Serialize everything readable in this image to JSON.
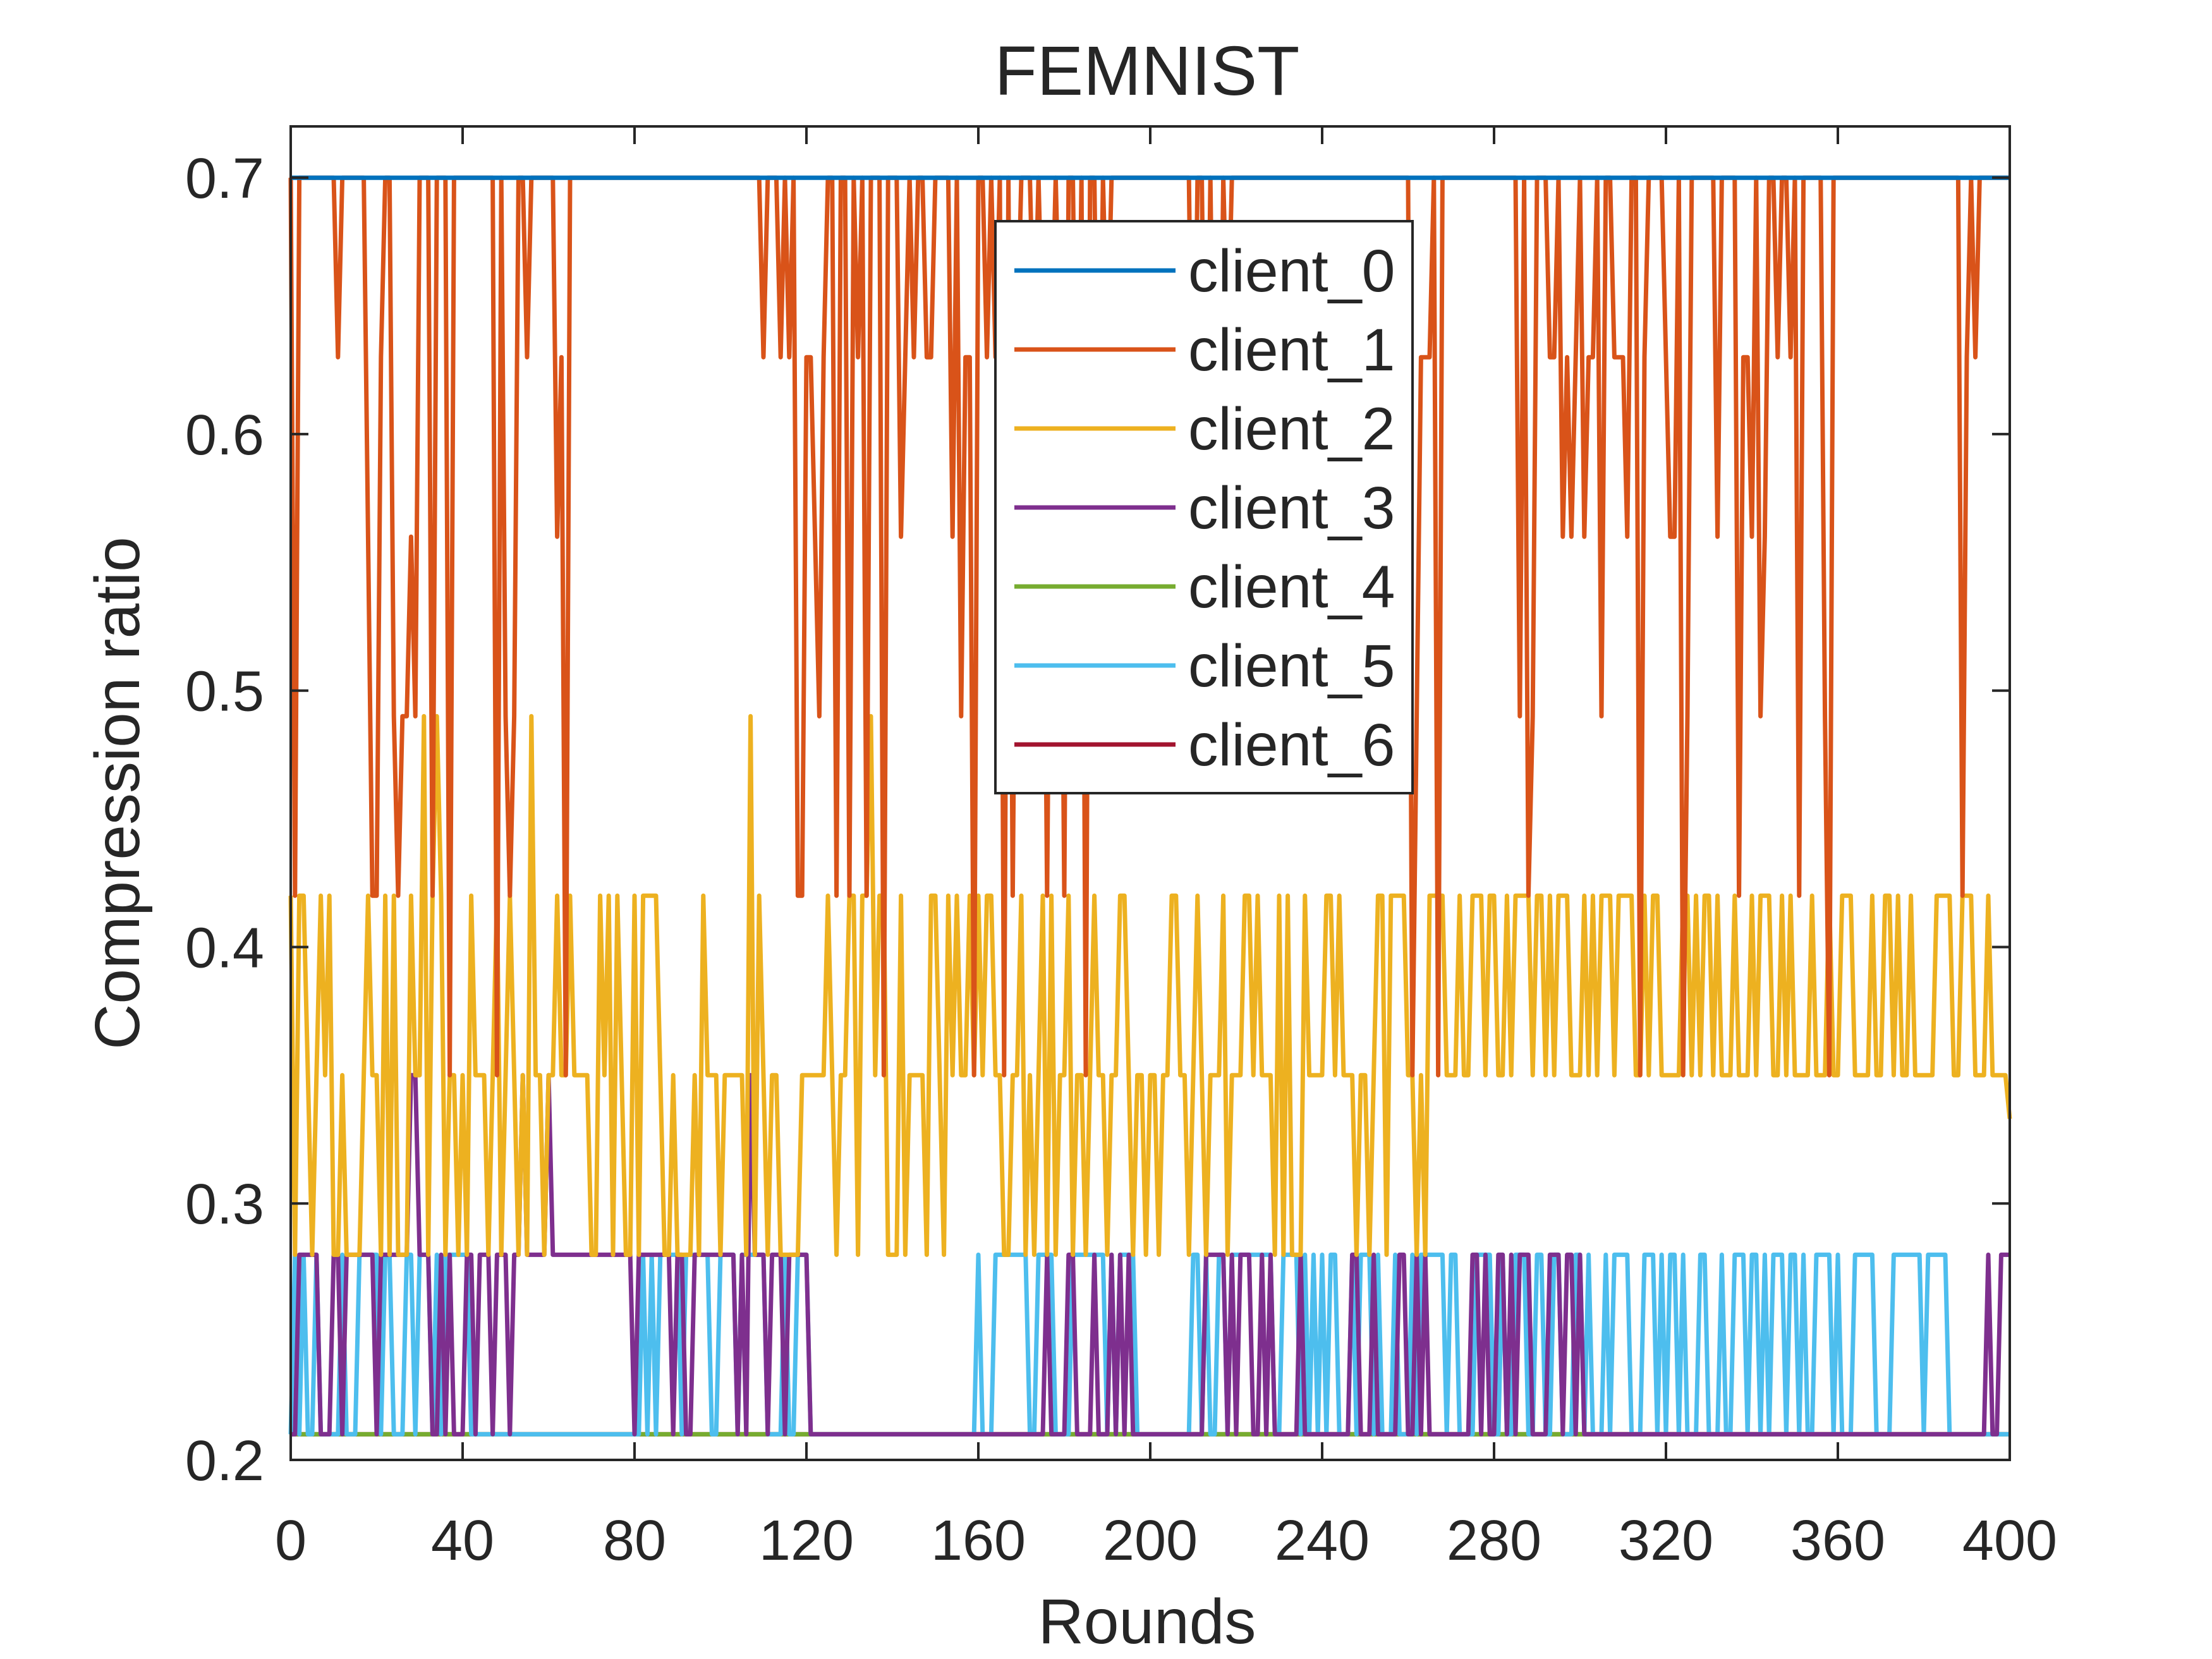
{
  "chart_data": {
    "type": "line",
    "title": "FEMNIST",
    "xlabel": "Rounds",
    "ylabel": "Compression ratio",
    "xlim": [
      0,
      400
    ],
    "ylim": [
      0.2,
      0.72
    ],
    "xticks": [
      0,
      40,
      80,
      120,
      160,
      200,
      240,
      280,
      320,
      360,
      400
    ],
    "yticks": [
      0.2,
      0.3,
      0.4,
      0.5,
      0.6,
      0.7
    ],
    "xtick_labels": [
      "0",
      "40",
      "80",
      "120",
      "160",
      "200",
      "240",
      "280",
      "320",
      "360",
      "400"
    ],
    "ytick_labels": [
      "0.2",
      "0.3",
      "0.4",
      "0.5",
      "0.6",
      "0.7"
    ],
    "legend_position": "top-center",
    "series": [
      {
        "name": "client_0",
        "color": "#0072BD",
        "constant": 0.7,
        "x": [
          0,
          400
        ]
      },
      {
        "name": "client_1",
        "color": "#D95319",
        "base": 0.7,
        "values_pool": [
          0.7,
          0.63,
          0.56,
          0.49,
          0.42,
          0.35
        ],
        "drop_windows": [
          [
            0,
            65
          ],
          [
            110,
            190
          ],
          [
            210,
            220
          ],
          [
            258,
            268
          ],
          [
            285,
            332
          ],
          [
            335,
            358
          ],
          [
            385,
            392
          ]
        ]
      },
      {
        "name": "client_2",
        "color": "#EDB120",
        "base": 0.35,
        "values_pool": [
          0.35,
          0.42,
          0.28,
          0.49
        ],
        "end_value": 0.333
      },
      {
        "name": "client_3",
        "color": "#7E2F8E",
        "base": 0.21,
        "values_pool": [
          0.21,
          0.28,
          0.35
        ],
        "active_windows": [
          [
            0,
            120
          ],
          [
            175,
            195
          ],
          [
            210,
            235
          ],
          [
            245,
            300
          ],
          [
            395,
            400
          ]
        ]
      },
      {
        "name": "client_4",
        "color": "#77AC30",
        "constant": 0.21,
        "x": [
          0,
          400
        ]
      },
      {
        "name": "client_5",
        "color": "#4DBEEE",
        "base": 0.21,
        "values_pool": [
          0.21,
          0.28
        ],
        "active_windows": [
          [
            0,
            45
          ],
          [
            80,
            122
          ],
          [
            160,
            200
          ],
          [
            210,
            385
          ]
        ]
      },
      {
        "name": "client_6",
        "color": "#A2142F",
        "constant": 0.21,
        "x": [
          0,
          400
        ]
      }
    ]
  }
}
